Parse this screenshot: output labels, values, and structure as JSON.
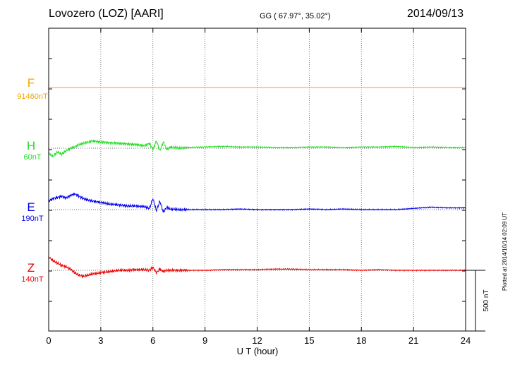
{
  "header": {
    "title": "Lovozero (LOZ)  [AARI]",
    "coords": "GG ( 67.97°,  35.02°)",
    "date": "2014/09/13"
  },
  "footer": {
    "plotted": "Plotted at 2014/10/14 02:09 UT"
  },
  "chart_data": {
    "type": "line",
    "xlabel": "U T (hour)",
    "xlim": [
      0,
      24
    ],
    "xticks": [
      "0",
      "3",
      "6",
      "9",
      "12",
      "15",
      "18",
      "21",
      "24"
    ],
    "grid": true,
    "scale_bar": {
      "label": "500 nT",
      "value": 500
    },
    "series": [
      {
        "name": "F",
        "baseline": "91460nT",
        "color": "#f0a500",
        "baseline_value": 0,
        "x": [
          0,
          6,
          12,
          18,
          24
        ],
        "y": [
          0,
          0,
          0,
          0,
          0
        ]
      },
      {
        "name": "H",
        "baseline": "60nT",
        "color": "#22dd22",
        "baseline_value": 0,
        "x": [
          0,
          0.25,
          0.5,
          0.75,
          1.0,
          1.25,
          1.5,
          1.75,
          2.0,
          2.5,
          3.0,
          3.5,
          4.0,
          4.5,
          5.0,
          5.5,
          5.8,
          6.0,
          6.2,
          6.4,
          6.6,
          6.8,
          7.0,
          7.5,
          8.0,
          9,
          10,
          11,
          12,
          13,
          14,
          15,
          16,
          17,
          18,
          19,
          20,
          21,
          22,
          23,
          24
        ],
        "y": [
          -40,
          -70,
          -30,
          -50,
          -20,
          0,
          10,
          30,
          40,
          60,
          50,
          45,
          40,
          35,
          30,
          20,
          40,
          -10,
          60,
          -20,
          50,
          -10,
          10,
          0,
          5,
          10,
          15,
          10,
          10,
          5,
          5,
          10,
          10,
          5,
          10,
          10,
          15,
          5,
          10,
          5,
          5
        ]
      },
      {
        "name": "E",
        "baseline": "190nT",
        "color": "#0000ee",
        "baseline_value": 0,
        "x": [
          0,
          0.25,
          0.5,
          0.75,
          1.0,
          1.25,
          1.5,
          1.75,
          2.0,
          2.5,
          3.0,
          3.5,
          4.0,
          4.5,
          5.0,
          5.5,
          5.8,
          6.0,
          6.2,
          6.4,
          6.6,
          6.8,
          7.0,
          7.5,
          8.0,
          9,
          10,
          11,
          12,
          13,
          14,
          15,
          16,
          17,
          18,
          19,
          20,
          21,
          22,
          23,
          24
        ],
        "y": [
          70,
          90,
          100,
          110,
          95,
          115,
          130,
          110,
          90,
          70,
          60,
          45,
          40,
          30,
          30,
          25,
          10,
          90,
          -10,
          70,
          -20,
          20,
          5,
          0,
          0,
          0,
          0,
          5,
          0,
          0,
          0,
          5,
          0,
          5,
          0,
          0,
          0,
          10,
          20,
          15,
          15
        ]
      },
      {
        "name": "Z",
        "baseline": "140nT",
        "color": "#ee0000",
        "baseline_value": 0,
        "x": [
          0,
          0.25,
          0.5,
          0.75,
          1.0,
          1.25,
          1.5,
          1.75,
          2.0,
          2.5,
          3.0,
          3.5,
          4.0,
          4.5,
          5.0,
          5.5,
          5.8,
          6.0,
          6.2,
          6.4,
          6.6,
          6.8,
          7.0,
          7.5,
          8.0,
          9,
          10,
          11,
          12,
          13,
          14,
          15,
          16,
          17,
          18,
          19,
          20,
          21,
          22,
          23,
          24
        ],
        "y": [
          110,
          80,
          60,
          40,
          30,
          10,
          -20,
          -40,
          -50,
          -30,
          -20,
          -10,
          0,
          0,
          5,
          5,
          0,
          25,
          -20,
          10,
          -10,
          0,
          0,
          0,
          0,
          0,
          5,
          5,
          5,
          10,
          10,
          5,
          5,
          5,
          0,
          5,
          0,
          0,
          0,
          0,
          0
        ]
      }
    ]
  }
}
